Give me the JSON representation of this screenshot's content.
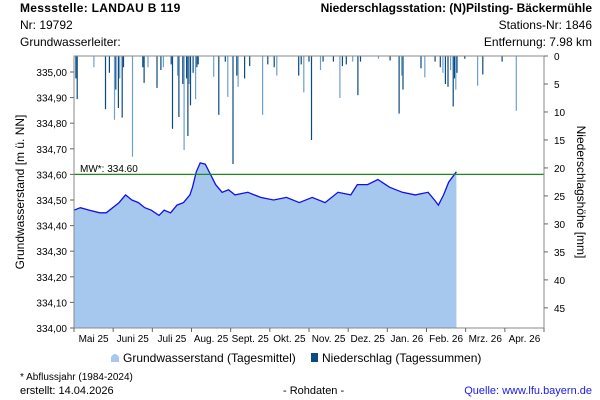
{
  "header": {
    "station": "Messstelle: LANDAU B 119",
    "nr": "Nr: 19792",
    "aquifer": "Grundwasserleiter:",
    "precip_station": "Niederschlagsstation: (N)Pilsting- Bäckermühle",
    "station_nr": "Stations-Nr: 1846",
    "distance": "Entfernung: 7.98 km"
  },
  "footer": {
    "note": "* Abflussjahr (1984-2024)",
    "created": "erstellt:  14.04.2026",
    "raw": "- Rohdaten -",
    "source": "Quelle: www.lfu.bayern.de"
  },
  "colors": {
    "area": "#a6c8ee",
    "line": "#1010ee",
    "precip_dark": "#0b4a82",
    "precip_light": "#6f9fce",
    "mean": "#1e8a1e"
  },
  "chart_data": {
    "type": "area",
    "ylabel": "Grundwasserstand [m ü. NN]",
    "y2label": "Niederschlagshöhe [mm]",
    "ylim": [
      334.0,
      335.0625
    ],
    "y2lim": [
      0,
      48.6
    ],
    "yticks": [
      "334,00",
      "334,10",
      "334,20",
      "334,30",
      "334,40",
      "334,50",
      "334,60",
      "334,70",
      "334,80",
      "334,90",
      "335,00"
    ],
    "y2ticks": [
      "0",
      "5",
      "10",
      "15",
      "20",
      "25",
      "30",
      "35",
      "40",
      "45"
    ],
    "xticks": [
      "Mai 25",
      "Juni 25",
      "Juli 25",
      "Aug. 25",
      "Sept. 25",
      "Okt. 25",
      "Nov. 25",
      "Dez. 25",
      "Jan. 26",
      "Feb. 26",
      "Mrz. 26",
      "Apr. 26"
    ],
    "x_days_total": 365,
    "mean_label": "MW*: 334.60",
    "mean_value": 334.6,
    "legend": [
      "Grundwasserstand (Tagesmittel)",
      "Niederschlag (Tagessummen)"
    ],
    "level_series": {
      "day": [
        0,
        5,
        12,
        20,
        25,
        35,
        40,
        45,
        50,
        55,
        60,
        66,
        70,
        75,
        80,
        85,
        90,
        92,
        95,
        98,
        102,
        106,
        110,
        115,
        120,
        125,
        135,
        145,
        155,
        165,
        175,
        185,
        195,
        205,
        215,
        220,
        228,
        236,
        245,
        255,
        265,
        275,
        280,
        283,
        287,
        291,
        297
      ],
      "value": [
        334.46,
        334.47,
        334.46,
        334.45,
        334.45,
        334.49,
        334.52,
        334.5,
        334.49,
        334.47,
        334.46,
        334.44,
        334.46,
        334.45,
        334.48,
        334.49,
        334.52,
        334.55,
        334.61,
        334.645,
        334.64,
        334.6,
        334.56,
        334.53,
        334.54,
        334.52,
        334.53,
        334.51,
        334.5,
        334.51,
        334.49,
        334.51,
        334.49,
        334.53,
        334.52,
        334.56,
        334.56,
        334.58,
        334.55,
        334.53,
        334.52,
        334.53,
        334.5,
        334.48,
        334.52,
        334.57,
        334.61
      ]
    },
    "precip_series": {
      "day": [
        1,
        2,
        15,
        24,
        27,
        31,
        32,
        34,
        35,
        37,
        38,
        45,
        53,
        54,
        57,
        64,
        67,
        69,
        75,
        76,
        80,
        81,
        84,
        85,
        87,
        88,
        89,
        90,
        92,
        94,
        95,
        96,
        108,
        112,
        117,
        119,
        123,
        126,
        127,
        132,
        136,
        146,
        150,
        155,
        157,
        174,
        176,
        178,
        182,
        184,
        191,
        193,
        201,
        206,
        208,
        211,
        216,
        220,
        222,
        236,
        245,
        252,
        254,
        255,
        269,
        272,
        280,
        284,
        286,
        288,
        290,
        292,
        294,
        295,
        296,
        297,
        303,
        313,
        317,
        332,
        343
      ],
      "mm": [
        4,
        7.7,
        2,
        9.5,
        3,
        11.4,
        6,
        9.3,
        4,
        11,
        2,
        18,
        2,
        4.8,
        2,
        5.7,
        2.5,
        2,
        1.5,
        13,
        3.5,
        10.9,
        5,
        16.8,
        4,
        14.3,
        5,
        8.8,
        3,
        7.7,
        2,
        1.5,
        3.7,
        10.5,
        1,
        7.3,
        19.3,
        3.5,
        5.5,
        4,
        1.8,
        10.5,
        1.5,
        2,
        3.5,
        3.5,
        1.5,
        6.5,
        1,
        15,
        2.5,
        1,
        1,
        7.5,
        1.8,
        1.5,
        1,
        7,
        1,
        0.5,
        0.8,
        10.3,
        3.5,
        6,
        2.2,
        3.8,
        1,
        2,
        3,
        5,
        5.5,
        2.5,
        9,
        4,
        6,
        3,
        0.5,
        5.3,
        3.3,
        1,
        9.8
      ]
    }
  }
}
